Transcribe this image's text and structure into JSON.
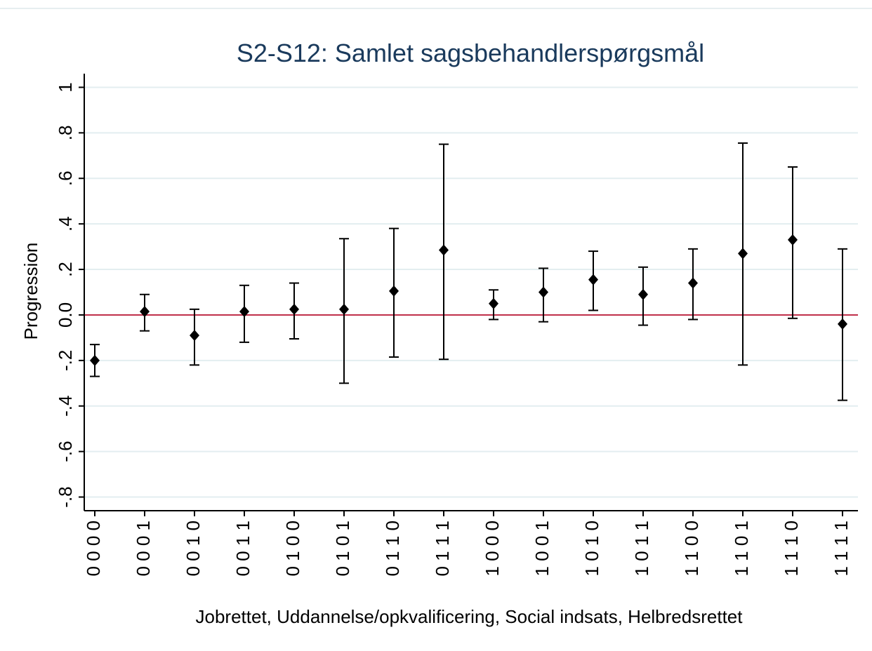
{
  "chart_data": {
    "type": "errorbar",
    "title": "S2-S12: Samlet sagsbehandlerspørgsmål",
    "x_label": "Jobrettet, Uddannelse/opkvalificering, Social indsats, Helbredsrettet",
    "y_label": "Progression",
    "categories": [
      "0 0 0 0",
      "0 0 0 1",
      "0 0 1 0",
      "0 0 1 1",
      "0 1 0 0",
      "0 1 0 1",
      "0 1 1 0",
      "0 1 1 1",
      "1 0 0 0",
      "1 0 0 1",
      "1 0 1 0",
      "1 0 1 1",
      "1 1 0 0",
      "1 1 0 1",
      "1 1 1 0",
      "1 1 1 1"
    ],
    "values": [
      -0.2,
      0.015,
      -0.09,
      0.015,
      0.025,
      0.025,
      0.105,
      0.285,
      0.05,
      0.1,
      0.155,
      0.09,
      0.14,
      0.27,
      0.33,
      -0.04
    ],
    "lower": [
      -0.27,
      -0.07,
      -0.22,
      -0.12,
      -0.105,
      -0.3,
      -0.185,
      -0.195,
      -0.02,
      -0.03,
      0.02,
      -0.045,
      -0.02,
      -0.22,
      -0.015,
      -0.375
    ],
    "upper": [
      -0.13,
      0.09,
      0.025,
      0.13,
      0.14,
      0.335,
      0.38,
      0.75,
      0.11,
      0.205,
      0.28,
      0.21,
      0.29,
      0.755,
      0.65,
      0.29
    ],
    "color": "#000000",
    "reference_line": 0,
    "reference_color": "#c0304a",
    "ylim": [
      -0.86,
      1.06
    ],
    "yticks": [
      1,
      {
        "value": 0.8,
        "label": ".8"
      },
      {
        "value": 0.6,
        "label": ".6"
      },
      {
        "value": 0.4,
        "label": ".4"
      },
      {
        "value": 0.2,
        "label": ".2"
      },
      {
        "value": 0,
        "label": "0.0"
      },
      {
        "value": -0.2,
        "label": "-.2"
      },
      {
        "value": -0.4,
        "label": "-.4"
      },
      {
        "value": -0.6,
        "label": "-.6"
      },
      {
        "value": -0.8,
        "label": "-.8"
      }
    ],
    "grid": true
  }
}
